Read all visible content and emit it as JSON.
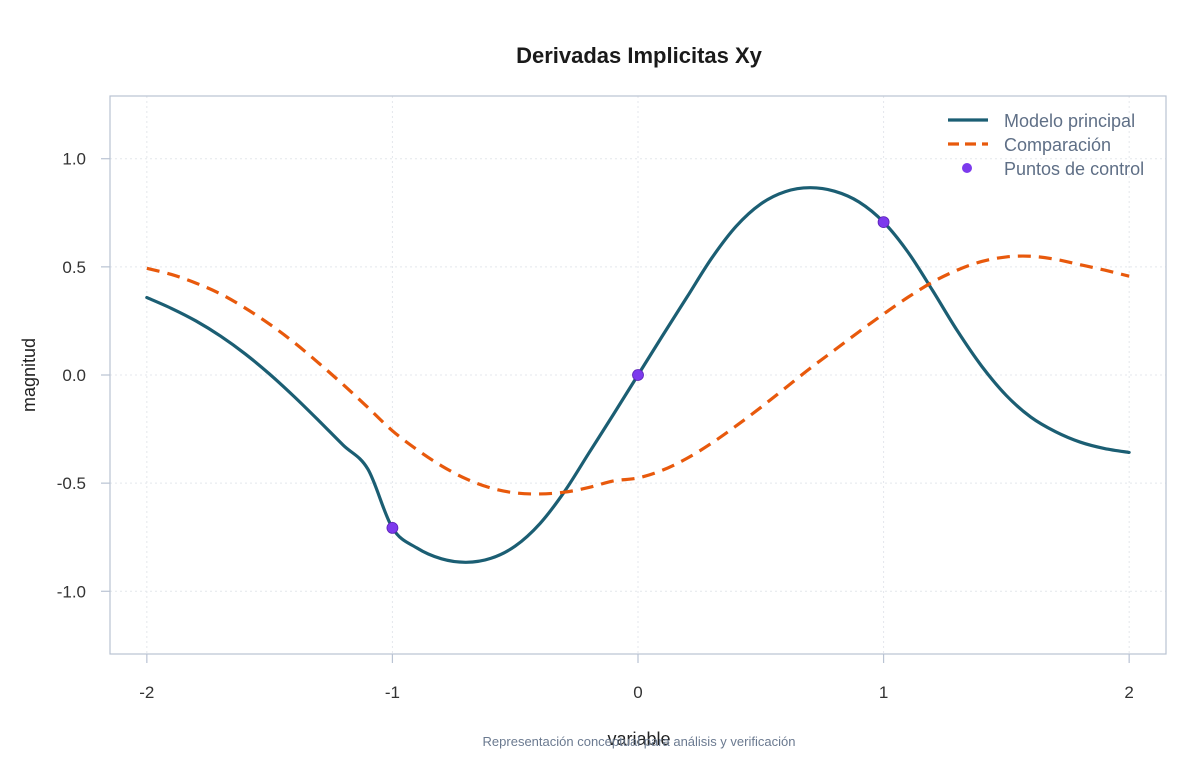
{
  "chart_data": {
    "type": "line",
    "title": "Derivadas Implicitas Xy",
    "xlabel": "variable",
    "ylabel": "magnitud",
    "caption": "Representación conceptual para análisis y verificación",
    "xlim": [
      -2.15,
      2.15
    ],
    "ylim": [
      -1.29,
      1.29
    ],
    "x_ticks": [
      -2,
      -1,
      0,
      1,
      2
    ],
    "x_tick_labels": [
      "-2",
      "-1",
      "0",
      "1",
      "2"
    ],
    "y_ticks": [
      -1.0,
      -0.5,
      0.0,
      0.5,
      1.0
    ],
    "y_tick_labels": [
      "-1.0",
      "-0.5",
      "0.0",
      "0.5",
      "1.0"
    ],
    "grid": true,
    "legend_position": "top-right",
    "series": [
      {
        "name": "Modelo principal",
        "style": "solid",
        "color": "#1b5e73",
        "x": [
          -2.0,
          -1.9,
          -1.8,
          -1.7,
          -1.6,
          -1.5,
          -1.4,
          -1.3,
          -1.2,
          -1.1,
          -1.0,
          -0.9,
          -0.8,
          -0.7,
          -0.6,
          -0.5,
          -0.4,
          -0.3,
          -0.2,
          -0.1,
          0.0,
          0.1,
          0.2,
          0.3,
          0.4,
          0.5,
          0.6,
          0.7,
          0.8,
          0.9,
          1.0,
          1.1,
          1.2,
          1.3,
          1.4,
          1.5,
          1.6,
          1.7,
          1.8,
          1.9,
          2.0
        ],
        "y": [
          0.358,
          0.308,
          0.25,
          0.18,
          0.098,
          0.004,
          -0.1,
          -0.211,
          -0.325,
          -0.435,
          -0.707,
          -0.8,
          -0.85,
          -0.866,
          -0.848,
          -0.791,
          -0.688,
          -0.54,
          -0.361,
          -0.182,
          0.0,
          0.182,
          0.361,
          0.54,
          0.688,
          0.791,
          0.848,
          0.866,
          0.85,
          0.8,
          0.707,
          0.567,
          0.39,
          0.205,
          0.04,
          -0.095,
          -0.195,
          -0.262,
          -0.31,
          -0.34,
          -0.358
        ]
      },
      {
        "name": "Comparación",
        "style": "dashed",
        "color": "#e8590c",
        "x": [
          -2.0,
          -1.9,
          -1.8,
          -1.7,
          -1.6,
          -1.5,
          -1.4,
          -1.3,
          -1.2,
          -1.1,
          -1.0,
          -0.9,
          -0.8,
          -0.7,
          -0.6,
          -0.5,
          -0.4,
          -0.3,
          -0.2,
          -0.1,
          0.0,
          0.1,
          0.2,
          0.3,
          0.4,
          0.5,
          0.6,
          0.7,
          0.8,
          0.9,
          1.0,
          1.1,
          1.2,
          1.3,
          1.4,
          1.5,
          1.6,
          1.7,
          1.8,
          1.9,
          2.0
        ],
        "y": [
          0.493,
          0.465,
          0.425,
          0.375,
          0.31,
          0.235,
          0.15,
          0.055,
          -0.045,
          -0.15,
          -0.258,
          -0.345,
          -0.42,
          -0.48,
          -0.522,
          -0.545,
          -0.55,
          -0.542,
          -0.52,
          -0.49,
          -0.476,
          -0.44,
          -0.385,
          -0.315,
          -0.235,
          -0.15,
          -0.06,
          0.03,
          0.115,
          0.2,
          0.282,
          0.36,
          0.43,
          0.485,
          0.525,
          0.546,
          0.549,
          0.535,
          0.51,
          0.485,
          0.457
        ]
      },
      {
        "name": "Puntos de control",
        "style": "points",
        "color": "#7c3aed",
        "x": [
          -1.0,
          0.0,
          1.0
        ],
        "y": [
          -0.707,
          0.0,
          0.707
        ]
      }
    ]
  }
}
